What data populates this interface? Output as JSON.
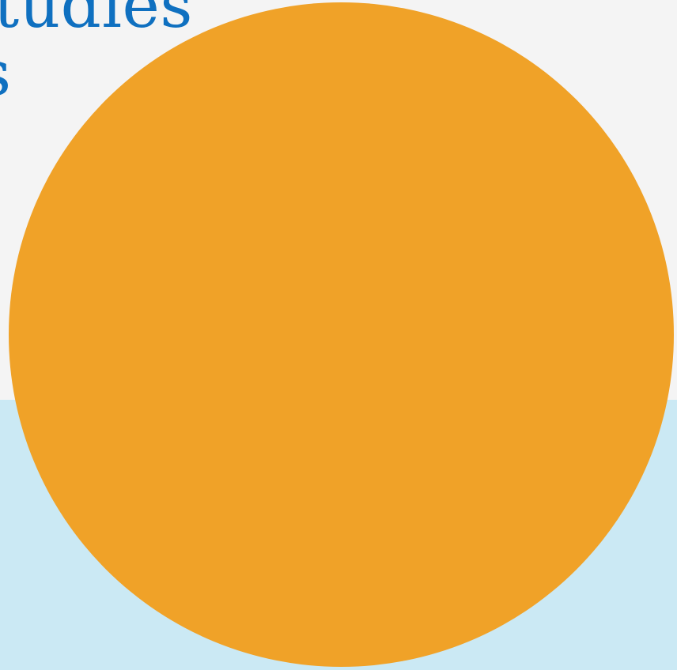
{
  "page": {
    "heading_line_1": "tudies",
    "heading_line_2": "s"
  },
  "colors": {
    "background_top": "#f4f4f4",
    "background_bottom": "#cbe9f4",
    "heading_text": "#0f70c0",
    "circle_fill": "#f0a228"
  }
}
